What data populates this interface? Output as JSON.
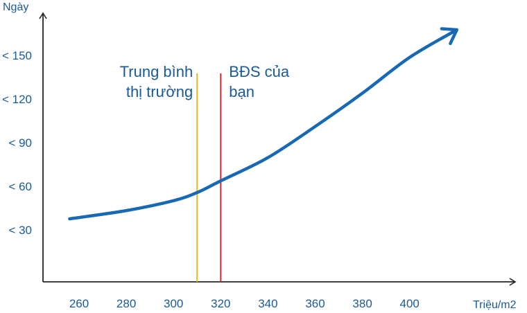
{
  "chart_data": {
    "type": "line",
    "title": "",
    "xlabel": "Triệu/m2",
    "ylabel": "Ngày",
    "x_ticks": [
      "260",
      "280",
      "300",
      "320",
      "340",
      "360",
      "380",
      "400"
    ],
    "y_ticks": [
      "< 30",
      "< 60",
      "< 90",
      "< 120",
      "< 150"
    ],
    "curve": {
      "x": [
        256,
        280,
        300,
        310,
        320,
        340,
        360,
        380,
        400,
        420
      ],
      "y": [
        37.6,
        43.3,
        50.1,
        55.7,
        63.7,
        79.7,
        101.1,
        124.0,
        148.6,
        167.6
      ]
    },
    "markers": [
      {
        "label_lines": [
          "Trung bình",
          "thị trường"
        ],
        "x": 310,
        "color": "#e8b81c"
      },
      {
        "label_lines": [
          "BĐS của",
          "bạn"
        ],
        "x": 320,
        "color": "#e8242c"
      }
    ],
    "colors": {
      "curve": "#1769b4",
      "axis": "#222222",
      "text": "#1a5a96"
    }
  }
}
